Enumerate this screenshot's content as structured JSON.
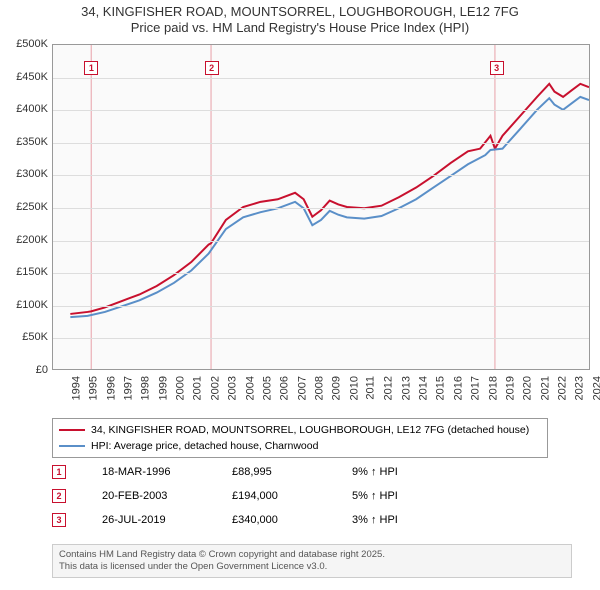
{
  "title": {
    "line1": "34, KINGFISHER ROAD, MOUNTSORREL, LOUGHBOROUGH, LE12 7FG",
    "line2": "Price paid vs. HM Land Registry's House Price Index (HPI)"
  },
  "chart": {
    "type": "line",
    "background_color": "#fafafa",
    "border_color": "#999999",
    "grid_color": "#dddddd",
    "font_size": 11,
    "x": {
      "min": 1994,
      "max": 2025,
      "ticks": [
        1994,
        1995,
        1996,
        1997,
        1998,
        1999,
        2000,
        2001,
        2002,
        2003,
        2004,
        2005,
        2006,
        2007,
        2008,
        2009,
        2010,
        2011,
        2012,
        2013,
        2014,
        2015,
        2016,
        2017,
        2018,
        2019,
        2020,
        2021,
        2022,
        2023,
        2024,
        2025
      ],
      "tick_rotation_deg": -90
    },
    "y": {
      "min": 0,
      "max": 500000,
      "ticks": [
        0,
        50000,
        100000,
        150000,
        200000,
        250000,
        300000,
        350000,
        400000,
        450000,
        500000
      ],
      "tick_labels": [
        "£0",
        "£50K",
        "£100K",
        "£150K",
        "£200K",
        "£250K",
        "£300K",
        "£350K",
        "£400K",
        "£450K",
        "£500K"
      ]
    },
    "series": [
      {
        "name": "price_paid",
        "color": "#c8102e",
        "width": 2,
        "points": [
          [
            1995.0,
            85000
          ],
          [
            1996.0,
            88000
          ],
          [
            1996.2,
            88995
          ],
          [
            1997.0,
            95000
          ],
          [
            1998.0,
            105000
          ],
          [
            1999.0,
            115000
          ],
          [
            2000.0,
            128000
          ],
          [
            2001.0,
            145000
          ],
          [
            2002.0,
            165000
          ],
          [
            2003.0,
            192000
          ],
          [
            2003.14,
            194000
          ],
          [
            2004.0,
            230000
          ],
          [
            2005.0,
            250000
          ],
          [
            2006.0,
            258000
          ],
          [
            2007.0,
            262000
          ],
          [
            2008.0,
            272000
          ],
          [
            2008.5,
            262000
          ],
          [
            2009.0,
            235000
          ],
          [
            2009.5,
            245000
          ],
          [
            2010.0,
            260000
          ],
          [
            2010.5,
            254000
          ],
          [
            2011.0,
            250000
          ],
          [
            2012.0,
            248000
          ],
          [
            2013.0,
            252000
          ],
          [
            2014.0,
            265000
          ],
          [
            2015.0,
            280000
          ],
          [
            2016.0,
            298000
          ],
          [
            2017.0,
            318000
          ],
          [
            2018.0,
            336000
          ],
          [
            2018.7,
            340000
          ],
          [
            2019.0,
            350000
          ],
          [
            2019.3,
            360000
          ],
          [
            2019.56,
            340000
          ],
          [
            2020.0,
            360000
          ],
          [
            2021.0,
            390000
          ],
          [
            2022.0,
            420000
          ],
          [
            2022.7,
            440000
          ],
          [
            2023.0,
            428000
          ],
          [
            2023.5,
            420000
          ],
          [
            2024.0,
            430000
          ],
          [
            2024.5,
            440000
          ],
          [
            2025.0,
            435000
          ]
        ]
      },
      {
        "name": "hpi",
        "color": "#5a8fc8",
        "width": 2,
        "points": [
          [
            1995.0,
            80000
          ],
          [
            1996.0,
            82000
          ],
          [
            1997.0,
            88000
          ],
          [
            1998.0,
            97000
          ],
          [
            1999.0,
            106000
          ],
          [
            2000.0,
            118000
          ],
          [
            2001.0,
            133000
          ],
          [
            2002.0,
            152000
          ],
          [
            2003.0,
            178000
          ],
          [
            2004.0,
            216000
          ],
          [
            2005.0,
            234000
          ],
          [
            2006.0,
            242000
          ],
          [
            2007.0,
            248000
          ],
          [
            2008.0,
            258000
          ],
          [
            2008.5,
            248000
          ],
          [
            2009.0,
            222000
          ],
          [
            2009.5,
            230000
          ],
          [
            2010.0,
            244000
          ],
          [
            2010.5,
            238000
          ],
          [
            2011.0,
            234000
          ],
          [
            2012.0,
            232000
          ],
          [
            2013.0,
            236000
          ],
          [
            2014.0,
            248000
          ],
          [
            2015.0,
            262000
          ],
          [
            2016.0,
            280000
          ],
          [
            2017.0,
            298000
          ],
          [
            2018.0,
            316000
          ],
          [
            2019.0,
            330000
          ],
          [
            2019.3,
            338000
          ],
          [
            2020.0,
            340000
          ],
          [
            2021.0,
            370000
          ],
          [
            2022.0,
            400000
          ],
          [
            2022.7,
            418000
          ],
          [
            2023.0,
            408000
          ],
          [
            2023.5,
            400000
          ],
          [
            2024.0,
            410000
          ],
          [
            2024.5,
            420000
          ],
          [
            2025.0,
            415000
          ]
        ]
      }
    ],
    "markers": [
      {
        "n": "1",
        "x": 1996.21,
        "y": 465000
      },
      {
        "n": "2",
        "x": 2003.14,
        "y": 465000
      },
      {
        "n": "3",
        "x": 2019.56,
        "y": 465000
      }
    ],
    "vlines_color": "#e8a0a8"
  },
  "legend": {
    "items": [
      {
        "color": "#c8102e",
        "label": "34, KINGFISHER ROAD, MOUNTSORREL, LOUGHBOROUGH, LE12 7FG (detached house)"
      },
      {
        "color": "#5a8fc8",
        "label": "HPI: Average price, detached house, Charnwood"
      }
    ]
  },
  "transactions": [
    {
      "n": "1",
      "date": "18-MAR-1996",
      "price": "£88,995",
      "pct": "9%",
      "dir": "up",
      "suffix": "HPI"
    },
    {
      "n": "2",
      "date": "20-FEB-2003",
      "price": "£194,000",
      "pct": "5%",
      "dir": "up",
      "suffix": "HPI"
    },
    {
      "n": "3",
      "date": "26-JUL-2019",
      "price": "£340,000",
      "pct": "3%",
      "dir": "up",
      "suffix": "HPI"
    }
  ],
  "note": {
    "line1": "Contains HM Land Registry data © Crown copyright and database right 2025.",
    "line2": "This data is licensed under the Open Government Licence v3.0."
  },
  "colors": {
    "marker_border": "#c8102e"
  }
}
